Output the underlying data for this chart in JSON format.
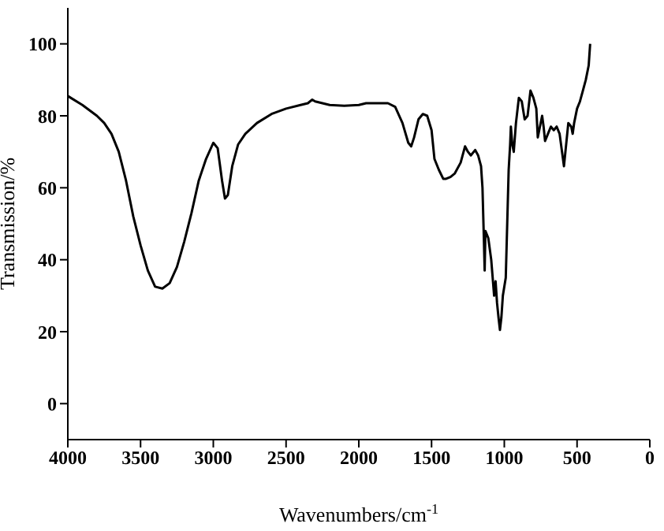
{
  "chart_data": {
    "type": "line",
    "xlabel": "Wavenumbers/cm$^{-1}$",
    "ylabel": "Transmission/%",
    "xlim": [
      4000,
      0
    ],
    "xticks": [
      4000,
      3500,
      3000,
      2500,
      2000,
      1500,
      1000,
      500,
      0
    ],
    "ylim": [
      -10,
      110
    ],
    "yticks": [
      0,
      20,
      40,
      60,
      80,
      100
    ],
    "marker": "none",
    "line_style": "solid",
    "series": [
      {
        "color": "#000000",
        "x": [
          4000,
          3900,
          3800,
          3750,
          3700,
          3650,
          3600,
          3550,
          3500,
          3450,
          3400,
          3350,
          3300,
          3250,
          3200,
          3150,
          3100,
          3050,
          3000,
          2970,
          2940,
          2920,
          2900,
          2870,
          2830,
          2780,
          2700,
          2600,
          2500,
          2400,
          2350,
          2320,
          2300,
          2200,
          2100,
          2000,
          1950,
          1900,
          1800,
          1750,
          1700,
          1660,
          1640,
          1620,
          1590,
          1560,
          1530,
          1500,
          1480,
          1450,
          1420,
          1400,
          1370,
          1340,
          1300,
          1270,
          1250,
          1230,
          1200,
          1180,
          1160,
          1150,
          1140,
          1135,
          1130,
          1110,
          1090,
          1080,
          1070,
          1060,
          1050,
          1040,
          1030,
          1020,
          1010,
          990,
          980,
          970,
          960,
          955,
          945,
          935,
          920,
          900,
          880,
          860,
          840,
          820,
          800,
          780,
          770,
          760,
          740,
          730,
          720,
          700,
          680,
          660,
          640,
          620,
          600,
          590,
          580,
          560,
          540,
          530,
          520,
          500,
          480,
          460,
          440,
          420,
          410
        ],
        "values": [
          85.5,
          83,
          80,
          78,
          75,
          70,
          62,
          52,
          44,
          37,
          32.5,
          32,
          33.5,
          38,
          45,
          53,
          62,
          68,
          72.5,
          71,
          62,
          57,
          58,
          66,
          72,
          75,
          78,
          80.5,
          82,
          83,
          83.5,
          84.5,
          84,
          83,
          82.8,
          83,
          83.5,
          83.5,
          83.5,
          82.5,
          78,
          72.5,
          71.5,
          74,
          79,
          80.5,
          80,
          76,
          68,
          65,
          62.5,
          62.5,
          63,
          64,
          67,
          71.5,
          70,
          69,
          70.5,
          69,
          66,
          60,
          45,
          37,
          48,
          46,
          40,
          35,
          30,
          34,
          28,
          24,
          20.5,
          24,
          30,
          35,
          50,
          65,
          72,
          77,
          72,
          70,
          78,
          85,
          84,
          79,
          80,
          87,
          85,
          82,
          74,
          76,
          80,
          77,
          73,
          75,
          77,
          76,
          77,
          75,
          69,
          66,
          70,
          78,
          77,
          75,
          78,
          82,
          84,
          87,
          90,
          94,
          100
        ]
      }
    ]
  }
}
